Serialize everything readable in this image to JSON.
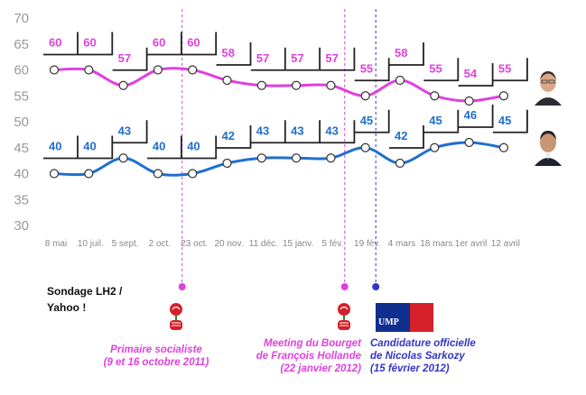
{
  "chart_data": {
    "type": "line",
    "categories": [
      "8 mai",
      "10 juil.",
      "5 sept.",
      "2 oct.",
      "23 oct.",
      "20 nov.",
      "11 déc.",
      "15 janv.",
      "5 fév.",
      "19 fév.",
      "4 mars",
      "18 mars",
      "1er avril",
      "12 avril"
    ],
    "ylim": [
      30,
      70
    ],
    "yticks": [
      30,
      35,
      40,
      45,
      50,
      55,
      60,
      65,
      70
    ],
    "grid": false,
    "series": [
      {
        "values": [
          60,
          60,
          57,
          60,
          60,
          58,
          57,
          57,
          57,
          55,
          58,
          55,
          54,
          55
        ],
        "color": "#e040e0"
      },
      {
        "values": [
          40,
          40,
          43,
          40,
          40,
          42,
          43,
          43,
          43,
          45,
          42,
          45,
          46,
          45
        ],
        "color": "#1f6fd0"
      }
    ],
    "events": [
      {
        "position": 3.7,
        "color": "#e040e0",
        "caption": [
          "Primaire socialiste",
          "(9 et 16 octobre 2011)"
        ]
      },
      {
        "position": 8.4,
        "color": "#e040e0",
        "caption": [
          "Meeting du Bourget",
          "de François Hollande",
          "(22 janvier 2012)"
        ]
      },
      {
        "position": 9.3,
        "color": "#3535c8",
        "caption": [
          "Candidature officielle",
          "de Nicolas Sarkozy",
          "(15 février 2012)"
        ]
      }
    ]
  },
  "source_note": [
    "Sondage LH2 /",
    "Yahoo !"
  ],
  "logo": {
    "ump_text": "UMP"
  },
  "icons": [
    "rose-logo",
    "rose-logo",
    "ump-logo",
    "hollande-photo",
    "sarkozy-photo"
  ]
}
